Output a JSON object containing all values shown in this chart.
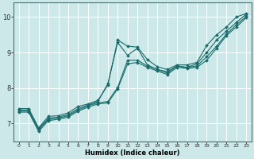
{
  "xlabel": "Humidex (Indice chaleur)",
  "ylabel": "",
  "xlim": [
    -0.5,
    23.5
  ],
  "ylim": [
    6.5,
    10.4
  ],
  "xtick_vals": [
    0,
    1,
    2,
    3,
    4,
    5,
    6,
    7,
    8,
    9,
    10,
    11,
    12,
    13,
    14,
    15,
    16,
    17,
    18,
    19,
    20,
    21,
    22,
    23
  ],
  "ytick_values": [
    7,
    8,
    9,
    10
  ],
  "background_color": "#cce8e8",
  "line_color": "#1a6b6b",
  "grid_color": "#ffffff",
  "series": [
    {
      "x": [
        0,
        1,
        2,
        3,
        4,
        5,
        6,
        7,
        8,
        9,
        10,
        11,
        12,
        13,
        14,
        15,
        16,
        17,
        18,
        19,
        20,
        21,
        22,
        23
      ],
      "y": [
        7.42,
        7.42,
        6.88,
        7.2,
        7.22,
        7.3,
        7.48,
        7.55,
        7.65,
        8.08,
        9.35,
        9.18,
        9.15,
        8.8,
        8.6,
        8.52,
        8.65,
        8.65,
        8.72,
        9.2,
        9.5,
        9.72,
        10.0,
        10.1
      ]
    },
    {
      "x": [
        0,
        1,
        2,
        3,
        4,
        5,
        6,
        7,
        8,
        9,
        10,
        11,
        12,
        13,
        14,
        15,
        16,
        17,
        18,
        19,
        20,
        21,
        22,
        23
      ],
      "y": [
        7.38,
        7.38,
        6.85,
        7.15,
        7.18,
        7.25,
        7.42,
        7.52,
        7.62,
        8.12,
        9.28,
        8.92,
        9.12,
        8.65,
        8.52,
        8.46,
        8.62,
        8.58,
        8.68,
        9.0,
        9.35,
        9.6,
        9.85,
        10.08
      ]
    },
    {
      "x": [
        0,
        1,
        2,
        3,
        4,
        5,
        6,
        7,
        8,
        9,
        10,
        11,
        12,
        13,
        14,
        15,
        16,
        17,
        18,
        19,
        20,
        21,
        22,
        23
      ],
      "y": [
        7.35,
        7.35,
        6.82,
        7.12,
        7.15,
        7.22,
        7.38,
        7.5,
        7.58,
        7.62,
        8.02,
        8.78,
        8.78,
        8.62,
        8.52,
        8.42,
        8.62,
        8.58,
        8.62,
        8.88,
        9.18,
        9.52,
        9.78,
        10.02
      ]
    },
    {
      "x": [
        0,
        1,
        2,
        3,
        4,
        5,
        6,
        7,
        8,
        9,
        10,
        11,
        12,
        13,
        14,
        15,
        16,
        17,
        18,
        19,
        20,
        21,
        22,
        23
      ],
      "y": [
        7.32,
        7.32,
        6.78,
        7.08,
        7.12,
        7.18,
        7.35,
        7.46,
        7.55,
        7.58,
        7.98,
        8.68,
        8.72,
        8.58,
        8.48,
        8.38,
        8.58,
        8.55,
        8.58,
        8.78,
        9.12,
        9.48,
        9.72,
        9.98
      ]
    }
  ]
}
